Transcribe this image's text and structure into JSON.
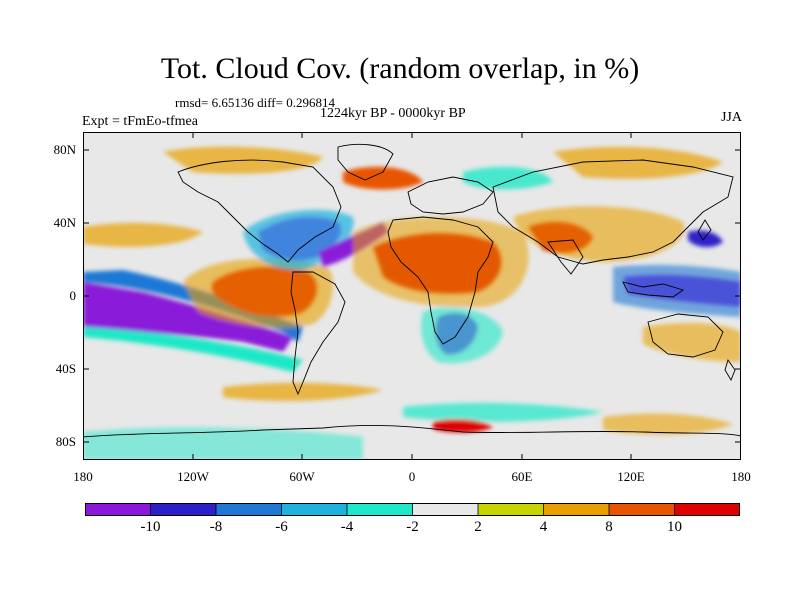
{
  "header": {
    "title": "Tot. Cloud Cov. (random overlap, in %)",
    "stats": "rmsd= 6.65136 diff= 0.296814",
    "period": "1224kyr BP - 0000kyr BP",
    "experiment": "Expt = tFmEo-tfmea",
    "season": "JJA"
  },
  "map": {
    "lat_labels": [
      "80N",
      "40N",
      "0",
      "40S",
      "80S"
    ],
    "lon_labels": [
      "180",
      "120W",
      "60W",
      "0",
      "60E",
      "120E",
      "180"
    ],
    "lon_range": [
      -180,
      180
    ],
    "lat_range": [
      -90,
      90
    ],
    "neutral_color": "#e8e8e8"
  },
  "colorbar": {
    "labels": [
      "-10",
      "-8",
      "-6",
      "-4",
      "-2",
      "2",
      "4",
      "8",
      "10"
    ],
    "colors": [
      "#8a1ad9",
      "#2e20c8",
      "#1f78d6",
      "#1fb2e0",
      "#1ee8c8",
      "#e8e8e8",
      "#c8d400",
      "#e8a000",
      "#e85400",
      "#e00000"
    ]
  }
}
